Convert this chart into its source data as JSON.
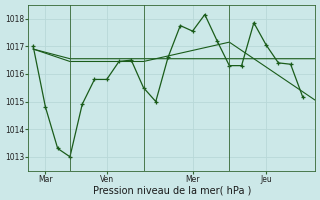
{
  "background_color": "#cce8e8",
  "grid_color": "#b8d8d8",
  "line_color": "#1a5c1a",
  "marker_color": "#1a5c1a",
  "xlabel": "Pression niveau de la mer( hPa )",
  "ylim": [
    1012.5,
    1018.5
  ],
  "yticks": [
    1013,
    1014,
    1015,
    1016,
    1017,
    1018
  ],
  "xtick_labels": [
    "Mar",
    "Ven",
    "Mer",
    "Jeu"
  ],
  "xtick_positions": [
    0.5,
    3.0,
    6.5,
    9.5
  ],
  "vline_positions": [
    1.5,
    4.5,
    8.0
  ],
  "xlim": [
    -0.2,
    11.5
  ],
  "series": [
    {
      "x": [
        0.0,
        0.5,
        1.0,
        1.5,
        2.0,
        2.5,
        3.0,
        3.5,
        4.0,
        4.5,
        5.0,
        5.5,
        6.0,
        6.5,
        7.0,
        7.5,
        8.0,
        8.5,
        9.0,
        9.5,
        10.0,
        10.5,
        11.0
      ],
      "y": [
        1017.0,
        1014.8,
        1013.3,
        1013.0,
        1014.9,
        1015.8,
        1015.8,
        1016.45,
        1016.5,
        1015.5,
        1015.0,
        1016.6,
        1017.75,
        1017.55,
        1018.15,
        1017.2,
        1016.3,
        1016.3,
        1017.85,
        1017.05,
        1016.4,
        1016.35,
        1015.15
      ],
      "marker": "+",
      "lw": 0.9
    },
    {
      "x": [
        0.0,
        1.5,
        4.5,
        8.0,
        11.5
      ],
      "y": [
        1016.9,
        1016.55,
        1016.55,
        1016.55,
        1016.55
      ],
      "marker": null,
      "lw": 0.8
    },
    {
      "x": [
        0.0,
        1.5,
        4.5,
        8.0,
        11.5
      ],
      "y": [
        1016.9,
        1016.45,
        1016.45,
        1017.15,
        1015.05
      ],
      "marker": null,
      "lw": 0.8
    }
  ],
  "figsize": [
    3.2,
    2.0
  ],
  "dpi": 100,
  "label_fontsize": 6.5,
  "tick_fontsize": 5.5,
  "xlabel_fontsize": 7
}
